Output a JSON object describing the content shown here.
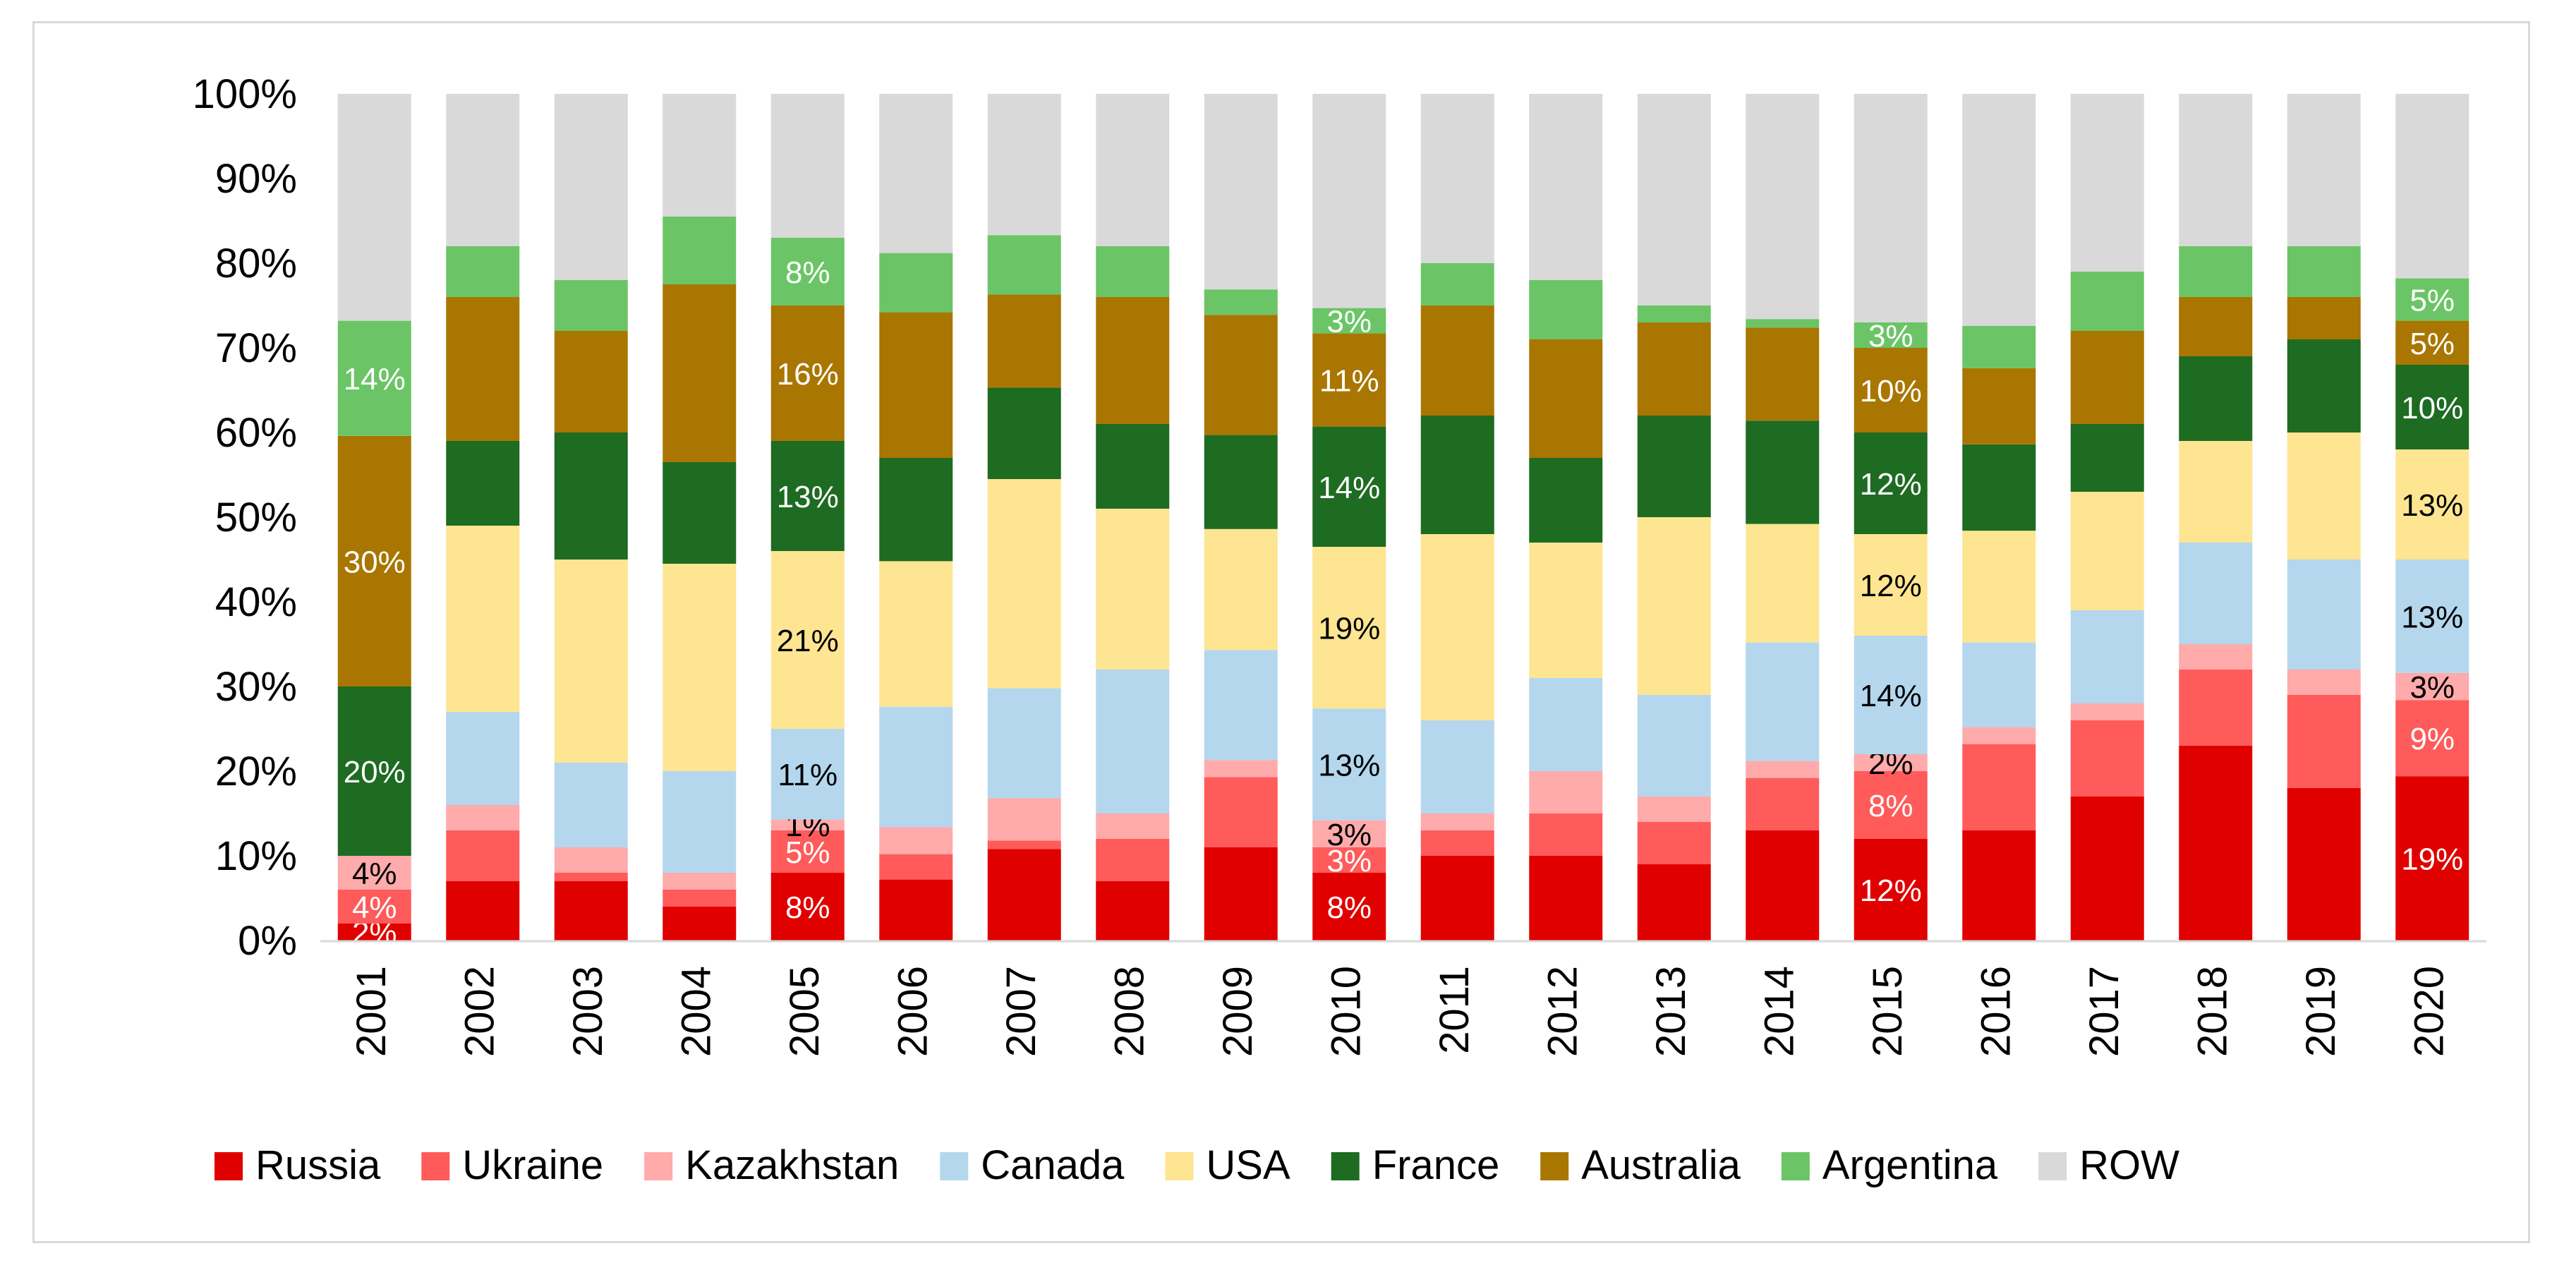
{
  "chart_data": {
    "type": "bar",
    "stacked": true,
    "normalized": true,
    "title": "",
    "xlabel": "",
    "ylabel": "",
    "ylim": [
      0,
      100
    ],
    "yticks": [
      "0%",
      "10%",
      "20%",
      "30%",
      "40%",
      "50%",
      "60%",
      "70%",
      "80%",
      "90%",
      "100%"
    ],
    "legend_position": "bottom",
    "categories": [
      "2001",
      "2002",
      "2003",
      "2004",
      "2005",
      "2006",
      "2007",
      "2008",
      "2009",
      "2010",
      "2011",
      "2012",
      "2013",
      "2014",
      "2015",
      "2016",
      "2017",
      "2018",
      "2019",
      "2020"
    ],
    "series": [
      {
        "name": "Russia",
        "color": "#e00000",
        "label_color": "#ffffff",
        "values": [
          2,
          7,
          7,
          4,
          8,
          7.2,
          10.8,
          7,
          11,
          8,
          10,
          10,
          9,
          13,
          12,
          13,
          17,
          23,
          18,
          19.4
        ],
        "labels": [
          "2%",
          "",
          "",
          "",
          "8%",
          "",
          "",
          "",
          "",
          "8%",
          "",
          "",
          "",
          "",
          "12%",
          "",
          "",
          "",
          "",
          "19%"
        ]
      },
      {
        "name": "Ukraine",
        "color": "#ff5b5b",
        "label_color": "#ffffff",
        "values": [
          4,
          6,
          1,
          2,
          5,
          3,
          1,
          5,
          8.3,
          3,
          3,
          5,
          5,
          6.2,
          8,
          10.2,
          9,
          9,
          11,
          9
        ],
        "labels": [
          "4%",
          "",
          "",
          "",
          "5%",
          "",
          "",
          "",
          "",
          "3%",
          "",
          "",
          "",
          "",
          "8%",
          "",
          "",
          "",
          "",
          "9%"
        ]
      },
      {
        "name": "Kazakhstan",
        "color": "#ffaaab",
        "label_color": "#000000",
        "values": [
          4,
          3,
          3,
          2,
          1.3,
          3.2,
          5,
          3,
          2,
          3.2,
          2,
          5,
          3,
          2,
          2,
          2,
          2,
          3,
          3,
          3.2
        ],
        "labels": [
          "4%",
          "",
          "",
          "",
          "1%",
          "",
          "",
          "",
          "",
          "3%",
          "",
          "",
          "",
          "",
          "2%",
          "",
          "",
          "",
          "",
          "3%"
        ]
      },
      {
        "name": "Canada",
        "color": "#b4d7ee",
        "label_color": "#000000",
        "values": [
          0,
          11,
          10,
          12,
          10.7,
          14.2,
          13,
          17,
          13,
          13.2,
          11,
          11,
          12,
          14,
          14,
          10,
          11,
          12,
          13,
          13.4
        ],
        "labels": [
          "",
          "",
          "",
          "",
          "11%",
          "",
          "",
          "",
          "",
          "13%",
          "",
          "",
          "",
          "",
          "14%",
          "",
          "",
          "",
          "",
          "13%"
        ]
      },
      {
        "name": "USA",
        "color": "#fde592",
        "label_color": "#000000",
        "values": [
          0,
          22,
          24,
          24.5,
          21,
          17.2,
          24.7,
          19,
          14.3,
          19.1,
          22,
          16,
          21,
          14,
          12,
          13.2,
          14,
          12,
          15,
          13
        ],
        "labels": [
          "",
          "",
          "",
          "",
          "21%",
          "",
          "",
          "",
          "",
          "19%",
          "",
          "",
          "",
          "",
          "12%",
          "",
          "",
          "",
          "",
          "13%"
        ]
      },
      {
        "name": "France",
        "color": "#1e6b22",
        "label_color": "#ffffff",
        "values": [
          20,
          10,
          15,
          12,
          13,
          12.2,
          10.8,
          10,
          11.1,
          14.2,
          14,
          10,
          12,
          12.2,
          12,
          10.2,
          8,
          10,
          11,
          10
        ],
        "labels": [
          "20%",
          "",
          "",
          "",
          "13%",
          "",
          "",
          "",
          "",
          "14%",
          "",
          "",
          "",
          "",
          "12%",
          "",
          "",
          "",
          "",
          "10%"
        ]
      },
      {
        "name": "Australia",
        "color": "#a97601",
        "label_color": "#ffffff",
        "values": [
          29.6,
          17,
          12,
          21,
          16,
          17.2,
          11,
          15,
          14.2,
          11,
          13,
          14,
          11,
          11,
          10,
          9,
          11,
          7,
          5,
          5.2
        ],
        "labels": [
          "30%",
          "",
          "",
          "",
          "16%",
          "",
          "",
          "",
          "",
          "11%",
          "",
          "",
          "",
          "",
          "10%",
          "",
          "",
          "",
          "",
          "5%"
        ]
      },
      {
        "name": "Argentina",
        "color": "#6bc566",
        "label_color": "#ffffff",
        "values": [
          13.6,
          6,
          6,
          8,
          8,
          7,
          7,
          6,
          3,
          3,
          5,
          7,
          2,
          1,
          3,
          5,
          7,
          6,
          6,
          5
        ],
        "labels": [
          "14%",
          "",
          "",
          "",
          "8%",
          "",
          "",
          "",
          "",
          "3%",
          "",
          "",
          "",
          "",
          "3%",
          "",
          "",
          "",
          "",
          "5%"
        ]
      },
      {
        "name": "ROW",
        "color": "#d9d9d9",
        "label_color": "#000000",
        "values": [
          26.8,
          18,
          22,
          14.5,
          17,
          18.8,
          16.7,
          18,
          23.1,
          25.3,
          20,
          22,
          25,
          26.6,
          27,
          27.4,
          21,
          18,
          18,
          21.8
        ],
        "labels": [
          "",
          "",
          "",
          "",
          "",
          "",
          "",
          "",
          "",
          "",
          "",
          "",
          "",
          "",
          "",
          "",
          "",
          "",
          "",
          ""
        ]
      }
    ]
  }
}
